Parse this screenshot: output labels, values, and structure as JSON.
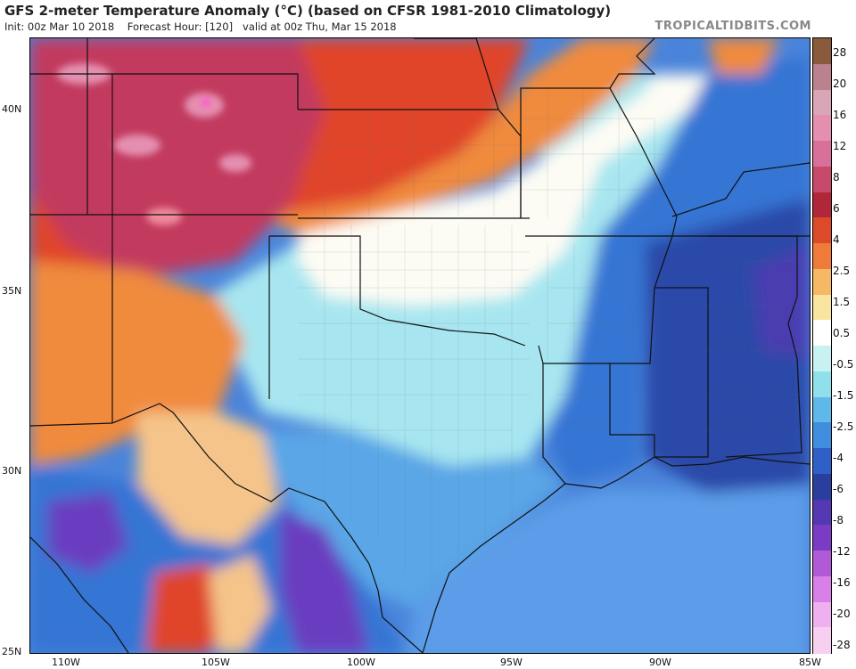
{
  "header": {
    "title": "GFS 2-meter Temperature Anomaly (°C) (based on CFSR 1981-2010 Climatology)",
    "init": "Init: 00z Mar 10 2018",
    "forecast_hour": "Forecast Hour: [120]",
    "valid": "valid at 00z Thu, Mar 15 2018",
    "source": "TROPICALTIDBITS.COM"
  },
  "axes": {
    "lat_labels": [
      "40N",
      "35N",
      "30N",
      "25N"
    ],
    "lon_labels": [
      "110W",
      "105W",
      "100W",
      "95W",
      "90W",
      "85W"
    ]
  },
  "colorbar": {
    "labels": [
      "28",
      "20",
      "16",
      "12",
      "8",
      "6",
      "4",
      "2.5",
      "1.5",
      "0.5",
      "-0.5",
      "-1.5",
      "-2.5",
      "-4",
      "-6",
      "-8",
      "-12",
      "-16",
      "-20",
      "-28"
    ],
    "colors": [
      "#8a5a3c",
      "#b9828c",
      "#d9a6b8",
      "#e58fb0",
      "#d9709a",
      "#c84a6a",
      "#b2263a",
      "#dd4a2a",
      "#ee7b3a",
      "#f5b865",
      "#f9e4a0",
      "#ffffff",
      "#c8f2f2",
      "#8fe0ea",
      "#5fb8ea",
      "#3f8ee0",
      "#2f60c8",
      "#2a3e9e",
      "#5438b2",
      "#7a3cc4",
      "#b05ad8",
      "#d880e8",
      "#eeb0ee",
      "#f7d0f0"
    ]
  },
  "map": {
    "colors": {
      "ocean": "#5b9ce8",
      "very_warm": "#c23a5e",
      "warm": "#e0442c",
      "orange": "#f08a3c",
      "neutral": "#fdfcf4",
      "light_blue": "#a7e6f0",
      "mid_blue": "#5aa6e6",
      "blue": "#3474d4",
      "dark_blue": "#2a4aa8",
      "purple": "#6a3cc0",
      "border": "#111111"
    }
  }
}
